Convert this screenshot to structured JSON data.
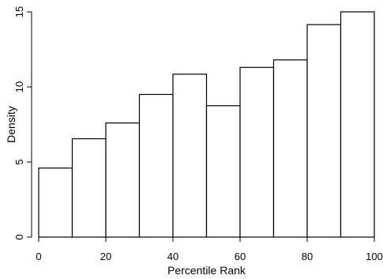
{
  "chart_data": {
    "type": "bar",
    "title": "",
    "xlabel": "Percentile Rank",
    "ylabel": "Density",
    "bin_edges": [
      0,
      10,
      20,
      30,
      40,
      50,
      60,
      70,
      80,
      90,
      100
    ],
    "values": [
      4.6,
      6.55,
      7.6,
      9.5,
      10.85,
      8.75,
      11.3,
      11.8,
      14.15,
      15.0
    ],
    "xlim": [
      0,
      100
    ],
    "ylim": [
      0,
      15
    ],
    "xticks": [
      0,
      20,
      40,
      60,
      80,
      100
    ],
    "yticks": [
      0,
      5,
      10,
      15
    ],
    "grid": false,
    "bar_fill": "#ffffff",
    "bar_stroke": "#000000"
  }
}
